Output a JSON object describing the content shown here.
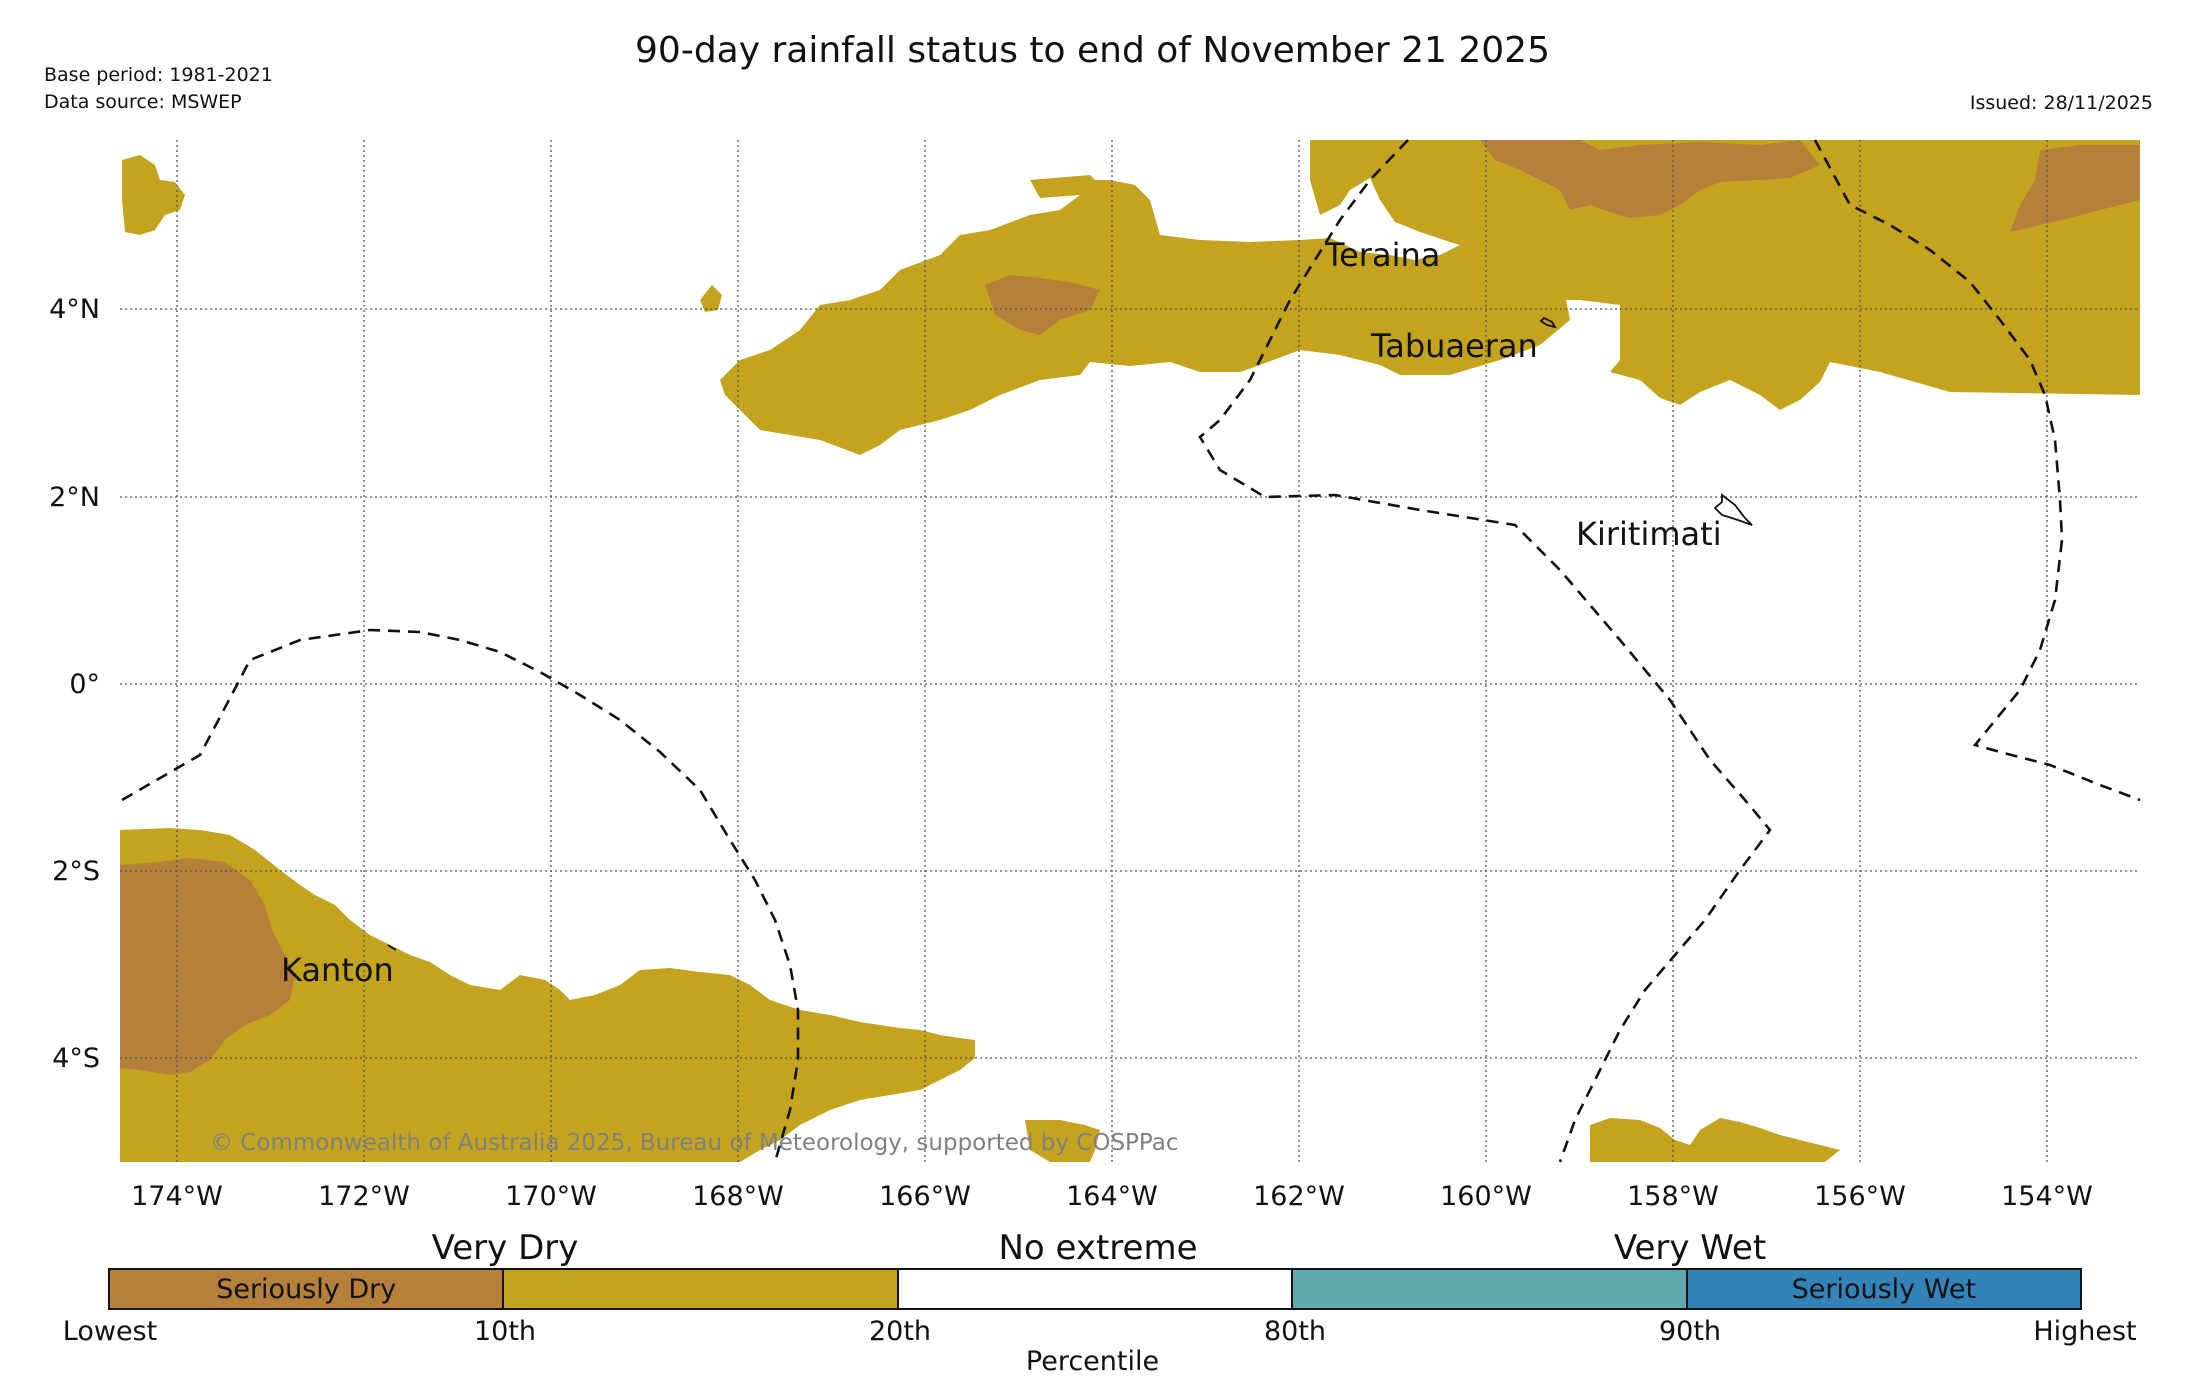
{
  "header": {
    "title": "90-day rainfall status to end of November 21 2025",
    "base_period": "Base period: 1981-2021",
    "data_source": "Data source: MSWEP",
    "issued": "Issued: 28/11/2025"
  },
  "map": {
    "lon_labels": [
      "174°W",
      "172°W",
      "170°W",
      "168°W",
      "166°W",
      "164°W",
      "162°W",
      "160°W",
      "158°W",
      "156°W",
      "154°W"
    ],
    "lat_labels": [
      "4°N",
      "2°N",
      "0°",
      "2°S",
      "4°S"
    ],
    "places": [
      "Teraina",
      "Tabuaeran",
      "Kiritimati",
      "Kanton"
    ],
    "copyright": "© Commonwealth of Australia 2025, Bureau of Meteorology, supported by COSPPac",
    "colors": {
      "seriously_dry": "#b5803a",
      "very_dry": "#c4a41e",
      "no_extreme": "#ffffff",
      "very_wet": "#5eaaad",
      "seriously_wet": "#3382b8"
    }
  },
  "legend": {
    "category_headings": [
      "Very Dry",
      "No extreme",
      "Very Wet"
    ],
    "segments": [
      {
        "label": "Seriously Dry",
        "color": "#b5803a"
      },
      {
        "label": "",
        "color": "#c4a41e"
      },
      {
        "label": "",
        "color": "#ffffff"
      },
      {
        "label": "",
        "color": "#5eaaad"
      },
      {
        "label": "Seriously Wet",
        "color": "#3382b8"
      }
    ],
    "ticks": [
      "Lowest",
      "10th",
      "20th",
      "80th",
      "90th",
      "Highest"
    ],
    "xlabel": "Percentile"
  }
}
